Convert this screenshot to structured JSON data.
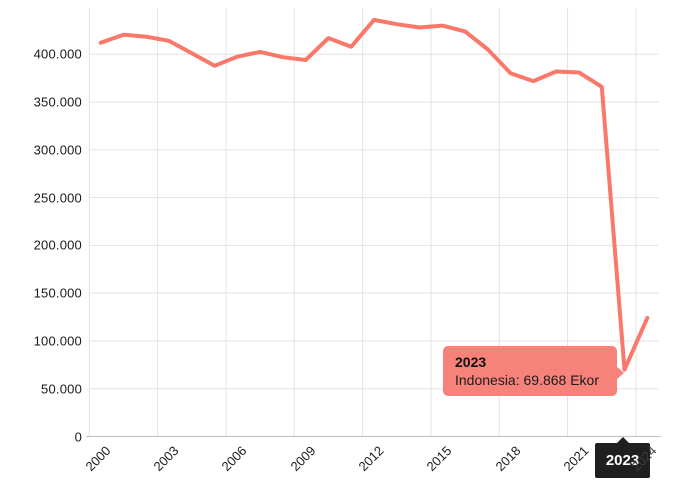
{
  "chart_data": {
    "type": "line",
    "title": "",
    "xlabel": "",
    "ylabel": "",
    "legend": false,
    "grid": true,
    "x": [
      2000,
      2001,
      2002,
      2003,
      2004,
      2005,
      2006,
      2007,
      2008,
      2009,
      2010,
      2011,
      2012,
      2013,
      2014,
      2015,
      2016,
      2017,
      2018,
      2019,
      2020,
      2021,
      2022,
      2023,
      2024
    ],
    "series": [
      {
        "name": "Indonesia",
        "unit": "Ekor",
        "values": [
          412000,
          420500,
          418400,
          414000,
          401000,
          388000,
          397500,
          402500,
          397000,
          394000,
          417000,
          408000,
          436000,
          431500,
          428000,
          430000,
          424000,
          405000,
          380000,
          372000,
          382000,
          381000,
          366000,
          69868,
          124000
        ]
      }
    ],
    "ylim": [
      0,
      450000
    ],
    "y_tick_values": [
      0,
      50000,
      100000,
      150000,
      200000,
      250000,
      300000,
      350000,
      400000
    ],
    "y_tick_labels": [
      "0",
      "50.000",
      "100.000",
      "150.000",
      "200.000",
      "250.000",
      "300.000",
      "350.000",
      "400.000"
    ],
    "x_tick_labels": [
      "2000",
      "2003",
      "2006",
      "2009",
      "2012",
      "2015",
      "2018",
      "2021",
      "2024"
    ],
    "highlighted_point": {
      "year": "2023",
      "value": 69868,
      "value_label": "69.868",
      "unit": "Ekor"
    }
  },
  "tooltip": {
    "title": "2023",
    "text": "Indonesia: 69.868 Ekor"
  },
  "axis_pointer": {
    "label": "2023"
  },
  "colors": {
    "line": "#f97869",
    "tooltip_bg": "#f7827a",
    "axis_box_bg": "#1f1f1f",
    "grid": "#e2e2e2",
    "axis_line": "#c6c6c6",
    "label": "#1a1a1a"
  }
}
